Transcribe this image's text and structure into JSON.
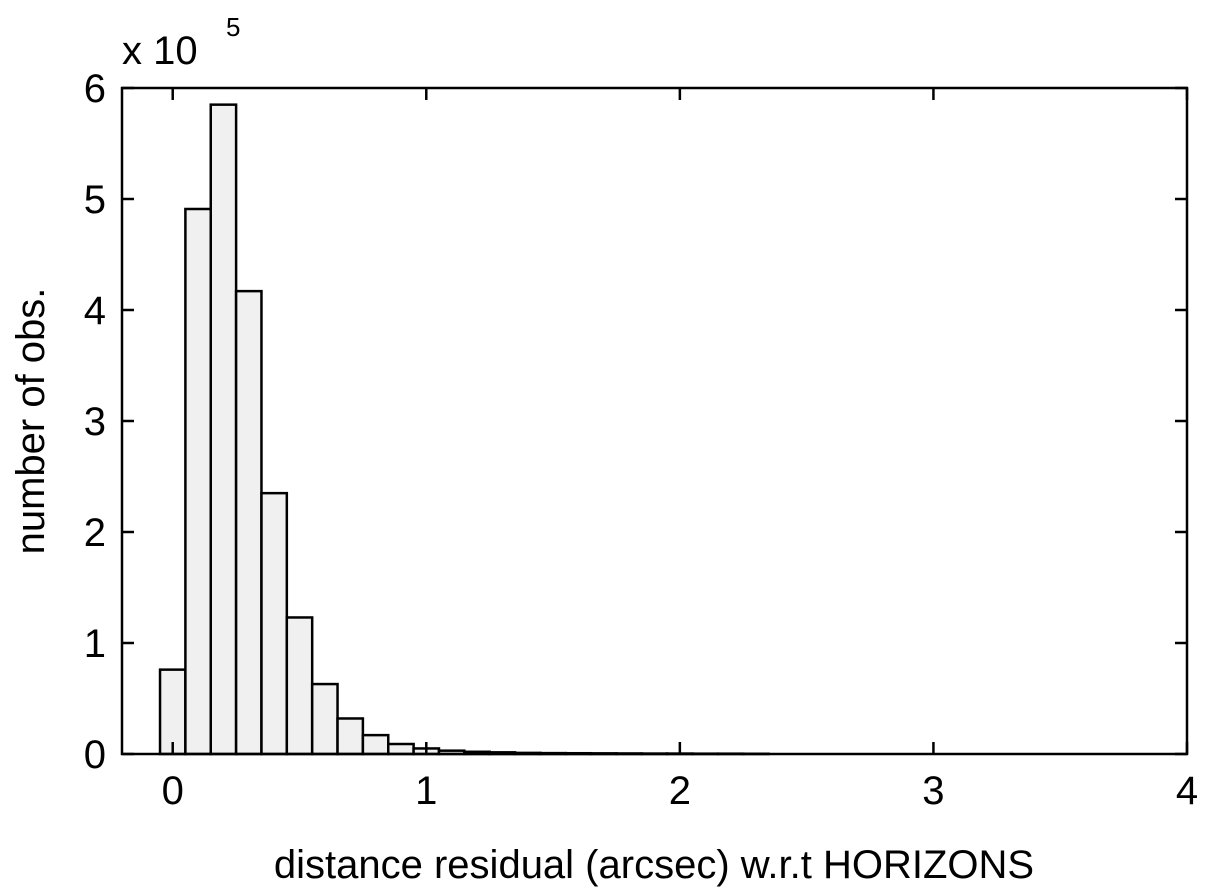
{
  "chart_data": {
    "type": "bar",
    "subtype": "histogram",
    "xlabel": "distance residual (arcsec) w.r.t HORIZONS",
    "ylabel": "number of obs.",
    "y_multiplier": {
      "base": "x 10",
      "exponent": "5"
    },
    "xlim": [
      -0.2,
      4
    ],
    "ylim": [
      0,
      6
    ],
    "x_ticks": [
      0,
      1,
      2,
      3,
      4
    ],
    "y_ticks": [
      0,
      1,
      2,
      3,
      4,
      5,
      6
    ],
    "grid": false,
    "bin_edges": [
      -0.05,
      0.05,
      0.15,
      0.25,
      0.35,
      0.45,
      0.55,
      0.65,
      0.75,
      0.85,
      0.95,
      1.05,
      1.15,
      1.25,
      1.35,
      1.45,
      1.55,
      1.65,
      1.75,
      1.85,
      1.95,
      2.05,
      2.15,
      2.25,
      2.35
    ],
    "values": [
      0.76,
      4.91,
      5.85,
      4.17,
      2.35,
      1.23,
      0.63,
      0.32,
      0.17,
      0.09,
      0.05,
      0.03,
      0.02,
      0.015,
      0.01,
      0.008,
      0.007,
      0.006,
      0.005,
      0.004,
      0.004,
      0.003,
      0.003,
      0.002
    ],
    "fill_color": "#f0f0f0",
    "edge_color": "#000000"
  }
}
